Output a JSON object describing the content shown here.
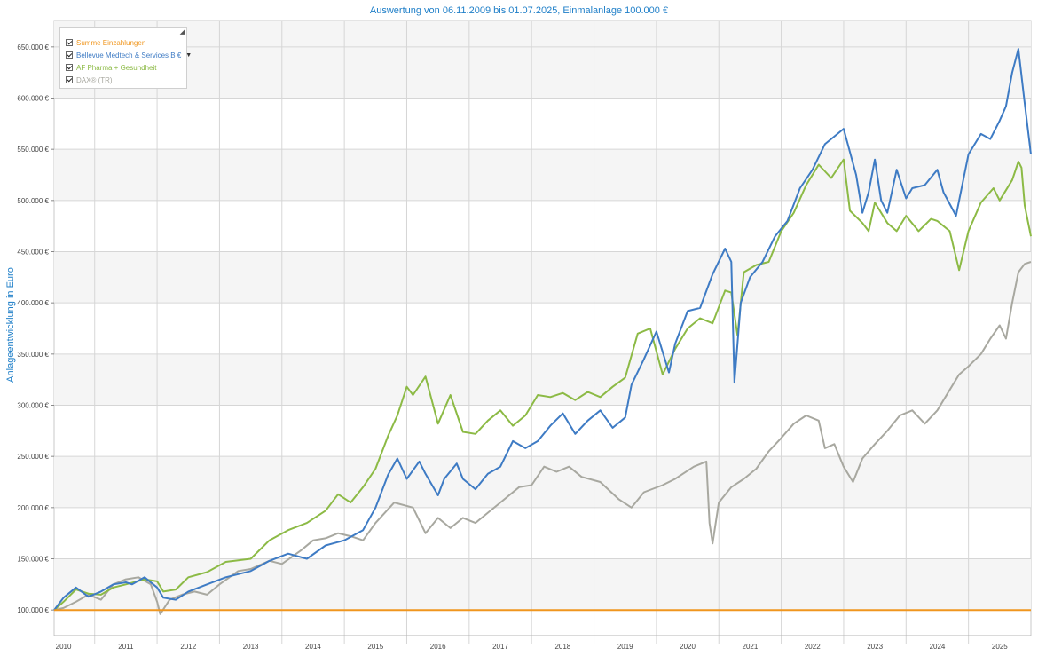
{
  "chart_title": "Auswertung von 06.11.2009 bis 01.07.2025, Einmalanlage 100.000 €",
  "legend": {
    "items": [
      {
        "label": "Summe Einzahlungen",
        "color": "#f0961e",
        "checked": true
      },
      {
        "label": "Bellevue Medtech & Services B €",
        "color": "#3e7bc4",
        "checked": true,
        "has_dropdown": true
      },
      {
        "label": "AF Pharma + Gesundheit",
        "color": "#8cba45",
        "checked": true
      },
      {
        "label": "DAX® (TR)",
        "color": "#a8a8a0",
        "checked": true
      }
    ]
  },
  "chart_data": {
    "type": "line",
    "title": "Auswertung von 06.11.2009 bis 01.07.2025, Einmalanlage 100.000 €",
    "xlabel": "",
    "ylabel": "Anlageentwicklung in Euro",
    "xlim": [
      2009.85,
      2025.5
    ],
    "ylim": [
      75000,
      675000
    ],
    "y_ticks": [
      100000,
      150000,
      200000,
      250000,
      300000,
      350000,
      400000,
      450000,
      500000,
      550000,
      600000,
      650000
    ],
    "y_tick_labels": [
      "100.000 €",
      "150.000 €",
      "200.000 €",
      "250.000 €",
      "300.000 €",
      "350.000 €",
      "400.000 €",
      "450.000 €",
      "500.000 €",
      "550.000 €",
      "600.000 €",
      "650.000 €"
    ],
    "x_tick_labels": [
      "2010",
      "2011",
      "2012",
      "2013",
      "2014",
      "2015",
      "2016",
      "2017",
      "2018",
      "2019",
      "2020",
      "2021",
      "2022",
      "2023",
      "2024",
      "2025"
    ],
    "x_ticks": [
      2010,
      2011,
      2012,
      2013,
      2014,
      2015,
      2016,
      2017,
      2018,
      2019,
      2020,
      2021,
      2022,
      2023,
      2024,
      2025
    ],
    "series": [
      {
        "name": "Summe Einzahlungen",
        "color": "#f0961e",
        "points": [
          [
            2009.85,
            100000
          ],
          [
            2025.5,
            100000
          ]
        ]
      },
      {
        "name": "Bellevue Medtech & Services B €",
        "color": "#3e7bc4",
        "points": [
          [
            2009.85,
            100000
          ],
          [
            2010.0,
            112000
          ],
          [
            2010.2,
            122000
          ],
          [
            2010.4,
            113000
          ],
          [
            2010.6,
            118000
          ],
          [
            2010.8,
            125000
          ],
          [
            2011.0,
            127000
          ],
          [
            2011.1,
            125000
          ],
          [
            2011.3,
            132000
          ],
          [
            2011.5,
            122000
          ],
          [
            2011.6,
            112000
          ],
          [
            2011.8,
            110000
          ],
          [
            2012.0,
            118000
          ],
          [
            2012.3,
            125000
          ],
          [
            2012.6,
            132000
          ],
          [
            2013.0,
            138000
          ],
          [
            2013.3,
            148000
          ],
          [
            2013.6,
            155000
          ],
          [
            2013.9,
            150000
          ],
          [
            2014.2,
            163000
          ],
          [
            2014.5,
            168000
          ],
          [
            2014.8,
            178000
          ],
          [
            2015.0,
            200000
          ],
          [
            2015.2,
            232000
          ],
          [
            2015.35,
            248000
          ],
          [
            2015.5,
            228000
          ],
          [
            2015.7,
            245000
          ],
          [
            2015.8,
            233000
          ],
          [
            2016.0,
            212000
          ],
          [
            2016.1,
            228000
          ],
          [
            2016.3,
            243000
          ],
          [
            2016.4,
            228000
          ],
          [
            2016.6,
            218000
          ],
          [
            2016.8,
            233000
          ],
          [
            2017.0,
            240000
          ],
          [
            2017.2,
            265000
          ],
          [
            2017.4,
            258000
          ],
          [
            2017.6,
            265000
          ],
          [
            2017.8,
            280000
          ],
          [
            2018.0,
            292000
          ],
          [
            2018.2,
            272000
          ],
          [
            2018.4,
            285000
          ],
          [
            2018.6,
            295000
          ],
          [
            2018.8,
            278000
          ],
          [
            2019.0,
            288000
          ],
          [
            2019.1,
            320000
          ],
          [
            2019.3,
            345000
          ],
          [
            2019.5,
            372000
          ],
          [
            2019.7,
            332000
          ],
          [
            2019.8,
            360000
          ],
          [
            2020.0,
            392000
          ],
          [
            2020.2,
            395000
          ],
          [
            2020.4,
            428000
          ],
          [
            2020.6,
            453000
          ],
          [
            2020.7,
            440000
          ],
          [
            2020.75,
            322000
          ],
          [
            2020.85,
            400000
          ],
          [
            2021.0,
            425000
          ],
          [
            2021.2,
            440000
          ],
          [
            2021.4,
            465000
          ],
          [
            2021.6,
            480000
          ],
          [
            2021.8,
            512000
          ],
          [
            2022.0,
            530000
          ],
          [
            2022.2,
            555000
          ],
          [
            2022.4,
            565000
          ],
          [
            2022.5,
            570000
          ],
          [
            2022.7,
            525000
          ],
          [
            2022.8,
            488000
          ],
          [
            2022.9,
            508000
          ],
          [
            2023.0,
            540000
          ],
          [
            2023.1,
            500000
          ],
          [
            2023.2,
            488000
          ],
          [
            2023.35,
            530000
          ],
          [
            2023.5,
            502000
          ],
          [
            2023.6,
            512000
          ],
          [
            2023.8,
            515000
          ],
          [
            2024.0,
            530000
          ],
          [
            2024.1,
            508000
          ],
          [
            2024.3,
            485000
          ],
          [
            2024.5,
            545000
          ],
          [
            2024.7,
            565000
          ],
          [
            2024.85,
            560000
          ],
          [
            2025.0,
            578000
          ],
          [
            2025.1,
            592000
          ],
          [
            2025.2,
            625000
          ],
          [
            2025.3,
            648000
          ],
          [
            2025.4,
            595000
          ],
          [
            2025.5,
            545000
          ]
        ]
      },
      {
        "name": "AF Pharma + Gesundheit",
        "color": "#8cba45",
        "points": [
          [
            2009.85,
            100000
          ],
          [
            2010.0,
            108000
          ],
          [
            2010.2,
            120000
          ],
          [
            2010.4,
            116000
          ],
          [
            2010.6,
            115000
          ],
          [
            2010.8,
            122000
          ],
          [
            2011.0,
            125000
          ],
          [
            2011.3,
            130000
          ],
          [
            2011.5,
            128000
          ],
          [
            2011.6,
            118000
          ],
          [
            2011.8,
            120000
          ],
          [
            2012.0,
            132000
          ],
          [
            2012.3,
            137000
          ],
          [
            2012.6,
            147000
          ],
          [
            2013.0,
            150000
          ],
          [
            2013.3,
            168000
          ],
          [
            2013.6,
            178000
          ],
          [
            2013.9,
            185000
          ],
          [
            2014.2,
            197000
          ],
          [
            2014.4,
            213000
          ],
          [
            2014.6,
            205000
          ],
          [
            2014.8,
            220000
          ],
          [
            2015.0,
            238000
          ],
          [
            2015.2,
            270000
          ],
          [
            2015.35,
            290000
          ],
          [
            2015.5,
            318000
          ],
          [
            2015.6,
            310000
          ],
          [
            2015.8,
            328000
          ],
          [
            2016.0,
            282000
          ],
          [
            2016.2,
            310000
          ],
          [
            2016.4,
            274000
          ],
          [
            2016.6,
            272000
          ],
          [
            2016.8,
            285000
          ],
          [
            2017.0,
            295000
          ],
          [
            2017.2,
            280000
          ],
          [
            2017.4,
            290000
          ],
          [
            2017.6,
            310000
          ],
          [
            2017.8,
            308000
          ],
          [
            2018.0,
            312000
          ],
          [
            2018.2,
            305000
          ],
          [
            2018.4,
            313000
          ],
          [
            2018.6,
            308000
          ],
          [
            2018.8,
            318000
          ],
          [
            2019.0,
            327000
          ],
          [
            2019.2,
            370000
          ],
          [
            2019.4,
            375000
          ],
          [
            2019.6,
            330000
          ],
          [
            2019.8,
            355000
          ],
          [
            2020.0,
            375000
          ],
          [
            2020.2,
            385000
          ],
          [
            2020.4,
            380000
          ],
          [
            2020.6,
            412000
          ],
          [
            2020.7,
            410000
          ],
          [
            2020.8,
            368000
          ],
          [
            2020.9,
            430000
          ],
          [
            2021.1,
            437000
          ],
          [
            2021.3,
            440000
          ],
          [
            2021.5,
            470000
          ],
          [
            2021.7,
            488000
          ],
          [
            2021.9,
            515000
          ],
          [
            2022.1,
            535000
          ],
          [
            2022.3,
            522000
          ],
          [
            2022.5,
            540000
          ],
          [
            2022.6,
            490000
          ],
          [
            2022.8,
            478000
          ],
          [
            2022.9,
            470000
          ],
          [
            2023.0,
            498000
          ],
          [
            2023.2,
            478000
          ],
          [
            2023.35,
            470000
          ],
          [
            2023.5,
            485000
          ],
          [
            2023.7,
            470000
          ],
          [
            2023.9,
            482000
          ],
          [
            2024.0,
            480000
          ],
          [
            2024.2,
            470000
          ],
          [
            2024.35,
            432000
          ],
          [
            2024.5,
            470000
          ],
          [
            2024.7,
            498000
          ],
          [
            2024.9,
            512000
          ],
          [
            2025.0,
            500000
          ],
          [
            2025.2,
            520000
          ],
          [
            2025.3,
            538000
          ],
          [
            2025.35,
            532000
          ],
          [
            2025.4,
            495000
          ],
          [
            2025.5,
            465000
          ]
        ]
      },
      {
        "name": "DAX® (TR)",
        "color": "#a8a8a0",
        "points": [
          [
            2009.85,
            100000
          ],
          [
            2010.0,
            102000
          ],
          [
            2010.2,
            108000
          ],
          [
            2010.4,
            115000
          ],
          [
            2010.6,
            110000
          ],
          [
            2010.8,
            125000
          ],
          [
            2011.0,
            130000
          ],
          [
            2011.2,
            132000
          ],
          [
            2011.4,
            125000
          ],
          [
            2011.5,
            108000
          ],
          [
            2011.55,
            96000
          ],
          [
            2011.7,
            110000
          ],
          [
            2011.9,
            115000
          ],
          [
            2012.1,
            118000
          ],
          [
            2012.3,
            115000
          ],
          [
            2012.5,
            125000
          ],
          [
            2012.8,
            138000
          ],
          [
            2013.0,
            140000
          ],
          [
            2013.3,
            148000
          ],
          [
            2013.5,
            145000
          ],
          [
            2013.8,
            158000
          ],
          [
            2014.0,
            168000
          ],
          [
            2014.2,
            170000
          ],
          [
            2014.4,
            175000
          ],
          [
            2014.6,
            172000
          ],
          [
            2014.8,
            168000
          ],
          [
            2015.0,
            185000
          ],
          [
            2015.3,
            205000
          ],
          [
            2015.6,
            200000
          ],
          [
            2015.8,
            175000
          ],
          [
            2016.0,
            190000
          ],
          [
            2016.2,
            180000
          ],
          [
            2016.4,
            190000
          ],
          [
            2016.6,
            185000
          ],
          [
            2016.8,
            195000
          ],
          [
            2017.0,
            205000
          ],
          [
            2017.3,
            220000
          ],
          [
            2017.5,
            222000
          ],
          [
            2017.7,
            240000
          ],
          [
            2017.9,
            235000
          ],
          [
            2018.1,
            240000
          ],
          [
            2018.3,
            230000
          ],
          [
            2018.6,
            225000
          ],
          [
            2018.9,
            208000
          ],
          [
            2019.1,
            200000
          ],
          [
            2019.3,
            215000
          ],
          [
            2019.6,
            222000
          ],
          [
            2019.8,
            228000
          ],
          [
            2020.1,
            240000
          ],
          [
            2020.3,
            245000
          ],
          [
            2020.35,
            185000
          ],
          [
            2020.4,
            165000
          ],
          [
            2020.5,
            205000
          ],
          [
            2020.7,
            220000
          ],
          [
            2020.9,
            228000
          ],
          [
            2021.1,
            238000
          ],
          [
            2021.3,
            255000
          ],
          [
            2021.5,
            268000
          ],
          [
            2021.7,
            282000
          ],
          [
            2021.9,
            290000
          ],
          [
            2022.1,
            285000
          ],
          [
            2022.2,
            258000
          ],
          [
            2022.35,
            262000
          ],
          [
            2022.5,
            240000
          ],
          [
            2022.65,
            225000
          ],
          [
            2022.8,
            248000
          ],
          [
            2023.0,
            262000
          ],
          [
            2023.2,
            275000
          ],
          [
            2023.4,
            290000
          ],
          [
            2023.6,
            295000
          ],
          [
            2023.8,
            282000
          ],
          [
            2024.0,
            295000
          ],
          [
            2024.2,
            315000
          ],
          [
            2024.35,
            330000
          ],
          [
            2024.5,
            338000
          ],
          [
            2024.7,
            350000
          ],
          [
            2024.85,
            365000
          ],
          [
            2025.0,
            378000
          ],
          [
            2025.1,
            365000
          ],
          [
            2025.2,
            400000
          ],
          [
            2025.3,
            430000
          ],
          [
            2025.4,
            438000
          ],
          [
            2025.5,
            440000
          ]
        ]
      }
    ]
  }
}
